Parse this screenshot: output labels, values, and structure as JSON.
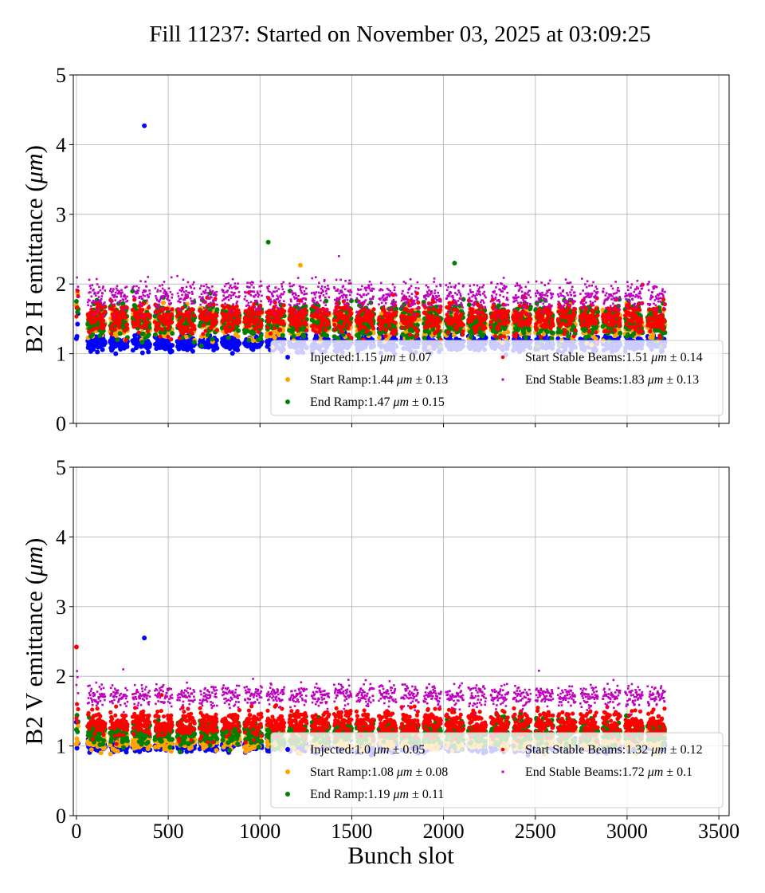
{
  "chart_data": {
    "title": "Fill 11237: Started on November 03, 2025 at 03:09:25",
    "xlabel": "Bunch slot",
    "xlim": [
      -17,
      3556
    ],
    "xticks": [
      0,
      500,
      1000,
      1500,
      2000,
      2500,
      3000,
      3500
    ],
    "grid": true,
    "panels": [
      {
        "type": "scatter",
        "ylabel_prefix": "B2 H emittance (",
        "ylabel_unit": "μm",
        "ylabel_suffix": ")",
        "ylim": [
          0,
          5
        ],
        "yticks": [
          0,
          1,
          2,
          3,
          4,
          5
        ],
        "legend_placement": "lower-right",
        "series": [
          {
            "name": "Injected",
            "legend": "Injected:1.15 ",
            "unit": "μm",
            "pm": " ± 0.07",
            "mean": 1.15,
            "std": 0.07,
            "color": "#0000ff",
            "outliers": [
              [
                370,
                4.27
              ]
            ]
          },
          {
            "name": "Start Ramp",
            "legend": "Start Ramp:1.44 ",
            "unit": "μm",
            "pm": " ± 0.13",
            "mean": 1.44,
            "std": 0.13,
            "color": "#ffa500",
            "outliers": [
              [
                1220,
                2.27
              ]
            ]
          },
          {
            "name": "End Ramp",
            "legend": "End Ramp:1.47 ",
            "unit": "μm",
            "pm": " ± 0.15",
            "mean": 1.47,
            "std": 0.15,
            "color": "#008000",
            "outliers": [
              [
                1045,
                2.6
              ],
              [
                2060,
                2.3
              ]
            ]
          },
          {
            "name": "Start Stable Beams",
            "legend": "Start Stable Beams:1.51 ",
            "unit": "μm",
            "pm": " ± 0.14",
            "mean": 1.51,
            "std": 0.14,
            "color": "#ff0000",
            "outliers": []
          },
          {
            "name": "End Stable Beams",
            "legend": "End Stable Beams:1.83 ",
            "unit": "μm",
            "pm": " ± 0.13",
            "mean": 1.83,
            "std": 0.13,
            "color": "#bf00bf",
            "outliers": [
              [
                1430,
                2.4
              ]
            ]
          }
        ]
      },
      {
        "type": "scatter",
        "ylabel_prefix": "B2 V emittance (",
        "ylabel_unit": "μm",
        "ylabel_suffix": ")",
        "ylim": [
          0,
          5
        ],
        "yticks": [
          0,
          1,
          2,
          3,
          4,
          5
        ],
        "legend_placement": "lower-right",
        "series": [
          {
            "name": "Injected",
            "legend": "Injected:1.0 ",
            "unit": "μm",
            "pm": " ± 0.05",
            "mean": 1.0,
            "std": 0.05,
            "color": "#0000ff",
            "outliers": [
              [
                370,
                2.55
              ]
            ]
          },
          {
            "name": "Start Ramp",
            "legend": "Start Ramp:1.08 ",
            "unit": "μm",
            "pm": " ± 0.08",
            "mean": 1.08,
            "std": 0.08,
            "color": "#ffa500",
            "outliers": []
          },
          {
            "name": "End Ramp",
            "legend": "End Ramp:1.19 ",
            "unit": "μm",
            "pm": " ± 0.11",
            "mean": 1.19,
            "std": 0.11,
            "color": "#008000",
            "outliers": []
          },
          {
            "name": "Start Stable Beams",
            "legend": "Start Stable Beams:1.32 ",
            "unit": "μm",
            "pm": " ± 0.12",
            "mean": 1.32,
            "std": 0.12,
            "color": "#ff0000",
            "outliers": [
              [
                0,
                2.42
              ]
            ]
          },
          {
            "name": "End Stable Beams",
            "legend": "End Stable Beams:1.72 ",
            "unit": "μm",
            "pm": " ± 0.1",
            "mean": 1.72,
            "std": 0.1,
            "color": "#bf00bf",
            "outliers": [
              [
                255,
                2.1
              ],
              [
                2520,
                2.08
              ]
            ]
          }
        ]
      }
    ]
  }
}
